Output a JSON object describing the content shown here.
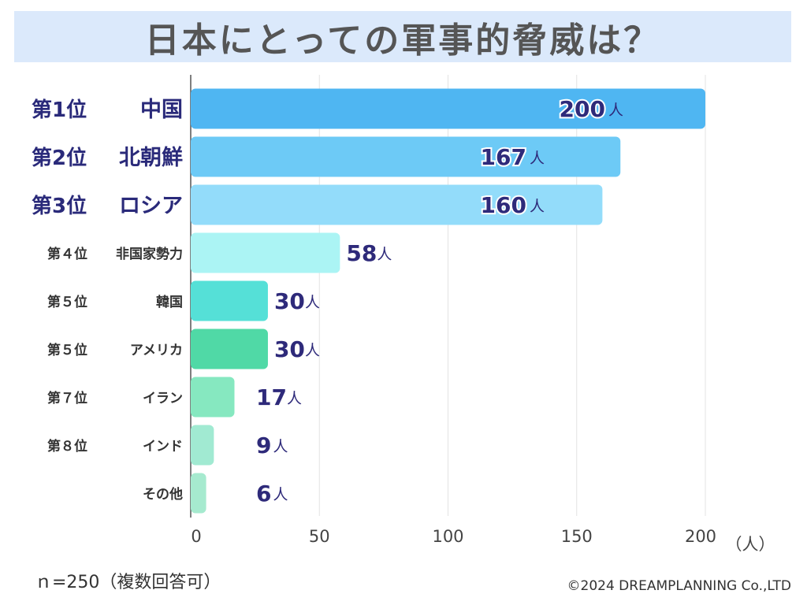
{
  "title": "日本にとっての軍事的脅威は？",
  "footnote": "ｎ=250（複数回答可）",
  "copyright": "©2024 DREAMPLANNING Co.,LTD",
  "chart_data": {
    "type": "bar",
    "orientation": "horizontal",
    "title": "日本にとっての軍事的脅威は？",
    "ranks": [
      "第1位",
      "第2位",
      "第3位",
      "第４位",
      "第５位",
      "第５位",
      "第７位",
      "第８位",
      ""
    ],
    "categories": [
      "中国",
      "北朝鮮",
      "ロシア",
      "非国家勢力",
      "韓国",
      "アメリカ",
      "イラン",
      "インド",
      "その他"
    ],
    "values": [
      200,
      167,
      160,
      58,
      30,
      30,
      17,
      9,
      6
    ],
    "value_unit": "人",
    "colors": [
      "#4fb6f2",
      "#6dcaf6",
      "#93dcfa",
      "#abf4f4",
      "#55e0d7",
      "#50d9a6",
      "#86e8c0",
      "#a1ead2",
      "#a6eacf"
    ],
    "xlim": [
      0,
      200
    ],
    "xticks": [
      0,
      50,
      100,
      150,
      200
    ],
    "xlabel": "（人）",
    "grid": true
  }
}
